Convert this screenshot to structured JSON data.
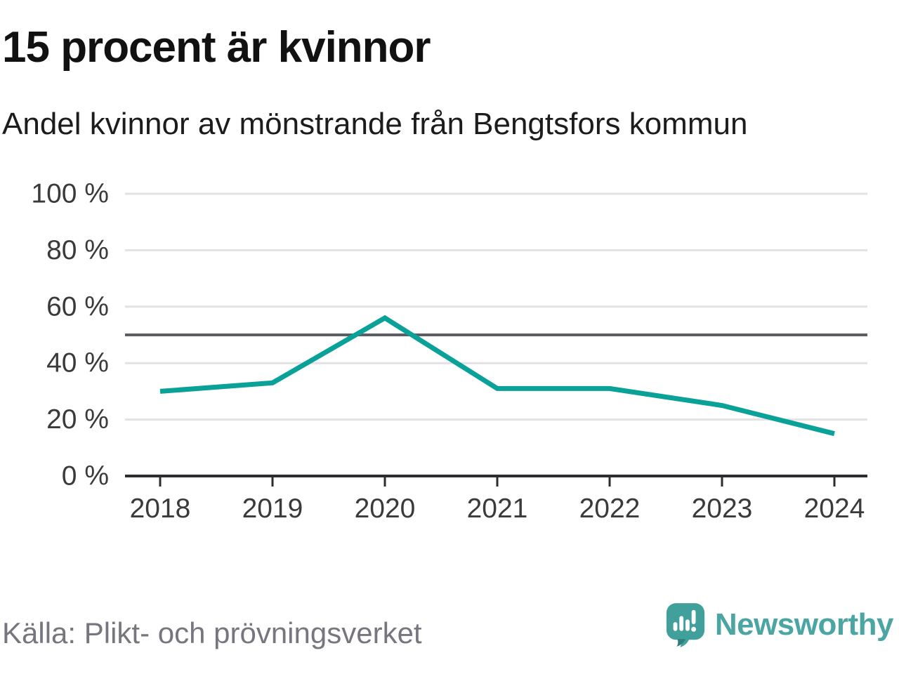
{
  "header": {
    "title": "15 procent är kvinnor",
    "subtitle": "Andel kvinnor av mönstrande från Bengtsfors kommun"
  },
  "chart_data": {
    "type": "line",
    "title": "15 procent är kvinnor",
    "subtitle": "Andel kvinnor av mönstrande från Bengtsfors kommun",
    "categories": [
      "2018",
      "2019",
      "2020",
      "2021",
      "2022",
      "2023",
      "2024"
    ],
    "series": [
      {
        "name": "Andel kvinnor av mönstrande",
        "values": [
          30,
          33,
          56,
          31,
          31,
          25,
          15
        ],
        "color": "#0aa298"
      }
    ],
    "unit": "%",
    "xlabel": "",
    "ylabel": "",
    "ylim": [
      0,
      100
    ],
    "yticks": [
      0,
      20,
      40,
      60,
      80,
      100
    ],
    "ytick_suffix": " %",
    "reference_line": {
      "value": 50,
      "color": "#5d5d66"
    },
    "grid": true,
    "legend": "none"
  },
  "footer": {
    "source": "Källa: Plikt- och prövningsverket"
  },
  "logo": {
    "text": "Newsworthy",
    "icon": "newsworthy-speech-bubble-bar-chart"
  },
  "colors": {
    "accent_teal": "#0aa298",
    "logo_teal": "#41a09b",
    "logo_teal_dark": "#2e7f7b",
    "logo_text_teal": "#4ba5a2",
    "grid": "#e2e2e2",
    "axis": "#2d2d31",
    "reference": "#5d5d66",
    "tick_text": "#3a3a3a",
    "source_text": "#76767f"
  }
}
